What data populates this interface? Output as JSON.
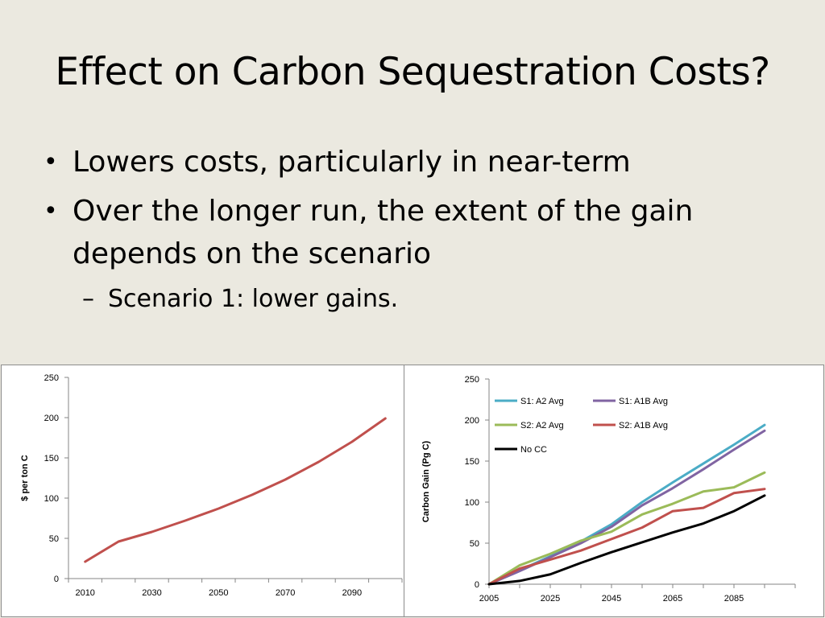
{
  "slide": {
    "title": "Effect on Carbon Sequestration Costs?",
    "bullets": [
      "Lowers costs, particularly in near-term",
      "Over the longer run, the extent of the gain depends on the scenario"
    ],
    "sub_bullet": "Scenario 1: lower gains."
  },
  "chart_data": [
    {
      "type": "line",
      "title": "",
      "xlabel": "",
      "ylabel": "$ per ton C",
      "ylim": [
        0,
        250
      ],
      "yticks": [
        0,
        50,
        100,
        150,
        200,
        250
      ],
      "xticks": [
        2010,
        2030,
        2050,
        2070,
        2090
      ],
      "grid": false,
      "legend": "none",
      "x": [
        2010,
        2020,
        2030,
        2040,
        2050,
        2060,
        2070,
        2080,
        2090,
        2100
      ],
      "series": [
        {
          "name": "",
          "color": "#c0504d",
          "values": [
            21,
            46,
            58,
            72,
            87,
            104,
            123,
            145,
            170,
            199
          ]
        }
      ]
    },
    {
      "type": "line",
      "title": "",
      "xlabel": "",
      "ylabel": "Carbon Gain (Pg C)",
      "ylim": [
        0,
        250
      ],
      "yticks": [
        0,
        50,
        100,
        150,
        200,
        250
      ],
      "xticks": [
        2005,
        2025,
        2045,
        2065,
        2085
      ],
      "grid": false,
      "legend": "top-left",
      "x": [
        2005,
        2015,
        2025,
        2035,
        2045,
        2055,
        2065,
        2075,
        2085,
        2095
      ],
      "series": [
        {
          "name": "S1: A2 Avg",
          "color": "#4bacc6",
          "values": [
            0,
            17,
            34,
            52,
            73,
            100,
            124,
            147,
            170,
            194
          ]
        },
        {
          "name": "S1: A1B Avg",
          "color": "#8064a2",
          "values": [
            0,
            16,
            33,
            50,
            70,
            96,
            117,
            140,
            164,
            187
          ]
        },
        {
          "name": "S2: A2 Avg",
          "color": "#9bbb59",
          "values": [
            0,
            23,
            37,
            53,
            64,
            85,
            98,
            113,
            118,
            136
          ]
        },
        {
          "name": "S2: A1B Avg",
          "color": "#c0504d",
          "values": [
            0,
            19,
            30,
            41,
            55,
            69,
            89,
            93,
            111,
            116
          ]
        },
        {
          "name": "No CC",
          "color": "#000000",
          "values": [
            0,
            4,
            12,
            26,
            39,
            51,
            63,
            74,
            89,
            108
          ]
        }
      ]
    }
  ]
}
